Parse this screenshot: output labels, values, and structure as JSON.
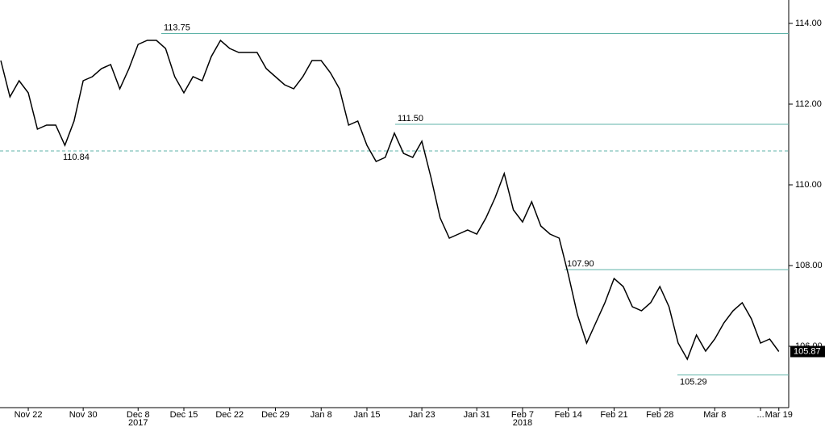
{
  "chart_data": {
    "type": "line",
    "categories": [
      null,
      null,
      null,
      "Nov 22",
      null,
      null,
      null,
      null,
      null,
      "Nov 30",
      null,
      null,
      null,
      null,
      null,
      "Dec 8",
      null,
      null,
      null,
      null,
      "Dec 15",
      null,
      null,
      null,
      null,
      "Dec 22",
      null,
      null,
      null,
      null,
      "Dec 29",
      null,
      null,
      null,
      null,
      "Jan 8",
      null,
      null,
      null,
      null,
      "Jan 15",
      null,
      null,
      null,
      null,
      null,
      "Jan 23",
      null,
      null,
      null,
      null,
      null,
      "Jan 31",
      null,
      null,
      null,
      null,
      "Feb 7",
      null,
      null,
      null,
      null,
      "Feb 14",
      null,
      null,
      null,
      null,
      "Feb 21",
      null,
      null,
      null,
      null,
      "Feb 28",
      null,
      null,
      null,
      null,
      null,
      "Mar 8",
      null,
      null,
      null,
      null,
      "...",
      null,
      "Mar 19"
    ],
    "years": [
      "2017",
      "2018"
    ],
    "series": [
      {
        "color": "#000000",
        "values": [
          113.08,
          112.18,
          112.58,
          112.28,
          111.38,
          111.48,
          111.48,
          110.98,
          111.58,
          112.58,
          112.68,
          112.88,
          112.98,
          112.38,
          112.88,
          113.48,
          113.58,
          113.58,
          113.38,
          112.68,
          112.28,
          112.68,
          112.58,
          113.18,
          113.58,
          113.38,
          113.28,
          113.28,
          113.28,
          112.88,
          112.68,
          112.48,
          112.38,
          112.68,
          113.08,
          113.08,
          112.78,
          112.38,
          111.48,
          111.58,
          110.98,
          110.58,
          110.68,
          111.28,
          110.78,
          110.68,
          111.08,
          110.18,
          109.18,
          108.68,
          108.78,
          108.88,
          108.78,
          109.18,
          109.68,
          110.28,
          109.38,
          109.08,
          109.58,
          108.98,
          108.78,
          108.68,
          107.78,
          106.78,
          106.08,
          106.58,
          107.08,
          107.68,
          107.48,
          106.98,
          106.88,
          107.08,
          107.48,
          106.98,
          106.08,
          105.68,
          106.28,
          105.88,
          106.18,
          106.58,
          106.88,
          107.08,
          106.68,
          106.08,
          106.18,
          105.87
        ]
      }
    ],
    "ylim": [
      104.48,
      114.58
    ],
    "yticks": [
      {
        "value": 106,
        "label": "106.00"
      },
      {
        "value": 108,
        "label": "108.00"
      },
      {
        "value": 110,
        "label": "110.00"
      },
      {
        "value": 112,
        "label": "112.00"
      },
      {
        "value": 114,
        "label": "114.00"
      }
    ],
    "levels": [
      113.75,
      111.5,
      107.9,
      105.29
    ],
    "level_labels": [
      "113.75",
      "111.50",
      "107.90",
      "105.29"
    ],
    "dashed_level": 110.84,
    "level_color": "#5fb3a8"
  }
}
